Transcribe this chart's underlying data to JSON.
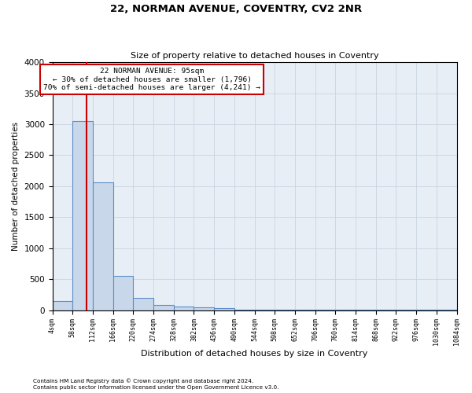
{
  "title1": "22, NORMAN AVENUE, COVENTRY, CV2 2NR",
  "title2": "Size of property relative to detached houses in Coventry",
  "xlabel": "Distribution of detached houses by size in Coventry",
  "ylabel": "Number of detached properties",
  "annotation_line1": "22 NORMAN AVENUE: 95sqm",
  "annotation_line2": "← 30% of detached houses are smaller (1,796)",
  "annotation_line3": "70% of semi-detached houses are larger (4,241) →",
  "property_size": 95,
  "bin_edges": [
    4,
    58,
    112,
    166,
    220,
    274,
    328,
    382,
    436,
    490,
    544,
    598,
    652,
    706,
    760,
    814,
    868,
    922,
    976,
    1030,
    1084
  ],
  "bar_heights": [
    150,
    3050,
    2060,
    560,
    200,
    80,
    55,
    45,
    35,
    5,
    5,
    5,
    5,
    5,
    5,
    5,
    5,
    5,
    5,
    5
  ],
  "bar_color": "#c8d8ea",
  "bar_edge_color": "#5b8cc8",
  "vline_color": "#cc0000",
  "annotation_box_edge": "#cc0000",
  "annotation_box_face": "#ffffff",
  "grid_color": "#c8d4e0",
  "background_color": "#e8eef5",
  "tick_labels": [
    "4sqm",
    "58sqm",
    "112sqm",
    "166sqm",
    "220sqm",
    "274sqm",
    "328sqm",
    "382sqm",
    "436sqm",
    "490sqm",
    "544sqm",
    "598sqm",
    "652sqm",
    "706sqm",
    "760sqm",
    "814sqm",
    "868sqm",
    "922sqm",
    "976sqm",
    "1030sqm",
    "1084sqm"
  ],
  "ylim": [
    0,
    4000
  ],
  "footnote1": "Contains HM Land Registry data © Crown copyright and database right 2024.",
  "footnote2": "Contains public sector information licensed under the Open Government Licence v3.0."
}
